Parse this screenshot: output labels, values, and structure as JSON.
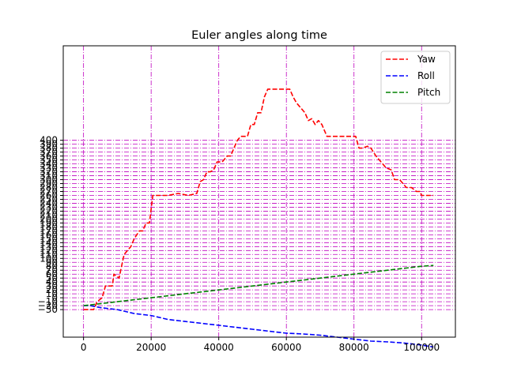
{
  "chart_data": {
    "type": "line",
    "title": "Euler angles along time",
    "xlabel": "",
    "ylabel": "",
    "xlim": [
      -6000,
      110000
    ],
    "ylim": [
      -100,
      640
    ],
    "x_ticks": [
      0,
      20000,
      40000,
      60000,
      80000,
      100000
    ],
    "x_tick_labels": [
      "0",
      "20000",
      "40000",
      "60000",
      "80000",
      "100000"
    ],
    "y_ticks": [
      -30,
      -20,
      -10,
      0,
      10,
      20,
      30,
      40,
      50,
      60,
      70,
      80,
      90,
      100,
      110,
      120,
      130,
      140,
      150,
      160,
      170,
      180,
      190,
      200,
      210,
      220,
      230,
      240,
      250,
      260,
      270,
      280,
      290,
      300,
      310,
      320,
      330,
      340,
      350,
      360,
      370,
      380,
      390,
      400
    ],
    "y_tick_labels": [
      "−30",
      "−20",
      "−10",
      "0",
      "10",
      "20",
      "30",
      "40",
      "50",
      "60",
      "70",
      "80",
      "90",
      "100",
      "110",
      "120",
      "130",
      "140",
      "150",
      "160",
      "170",
      "180",
      "190",
      "200",
      "210",
      "220",
      "230",
      "240",
      "250",
      "260",
      "270",
      "280",
      "290",
      "300",
      "310",
      "320",
      "330",
      "340",
      "350",
      "360",
      "370",
      "380",
      "390",
      "400"
    ],
    "grid": {
      "x": true,
      "y": true,
      "color": "#bf00bf",
      "style": "dash-dot"
    },
    "legend": {
      "position": "top-right"
    },
    "series": [
      {
        "name": "Yaw",
        "color": "#ff0000",
        "x": [
          0,
          3000,
          4000,
          5500,
          6500,
          8500,
          9000,
          10500,
          11500,
          12000,
          13000,
          14000,
          15000,
          16500,
          17500,
          18500,
          19500,
          20500,
          22000,
          25000,
          28000,
          31000,
          33500,
          34500,
          35500,
          36500,
          37500,
          38500,
          39500,
          41000,
          42500,
          43500,
          44500,
          45500,
          46500,
          48500,
          49500,
          50500,
          51500,
          52500,
          53500,
          54500,
          57000,
          59000,
          61000,
          62000,
          63000,
          64500,
          65500,
          66500,
          67500,
          68500,
          69500,
          70500,
          72000,
          75000,
          78000,
          80500,
          81500,
          82500,
          84000,
          85000,
          86500,
          87500,
          88500,
          89500,
          91000,
          92000,
          93500,
          94500,
          95500,
          96500,
          97000,
          98500,
          99500,
          100000,
          101500,
          103500
        ],
        "values": [
          -30,
          -30,
          -10,
          0,
          30,
          30,
          60,
          50,
          90,
          110,
          120,
          130,
          150,
          170,
          170,
          190,
          190,
          260,
          260,
          260,
          265,
          260,
          265,
          295,
          300,
          320,
          320,
          325,
          345,
          345,
          360,
          360,
          380,
          400,
          410,
          410,
          440,
          440,
          470,
          470,
          510,
          530,
          530,
          530,
          530,
          510,
          495,
          480,
          470,
          450,
          455,
          440,
          450,
          440,
          410,
          410,
          410,
          410,
          380,
          380,
          385,
          380,
          360,
          350,
          340,
          330,
          325,
          300,
          300,
          290,
          280,
          280,
          280,
          270,
          270,
          260,
          260,
          260
        ]
      },
      {
        "name": "Roll",
        "color": "#0000ff",
        "x": [
          0,
          2000,
          5000,
          10000,
          15000,
          20000,
          25000,
          30000,
          35000,
          40000,
          45000,
          50000,
          55000,
          60000,
          65000,
          70000,
          75000,
          80000,
          85000,
          90000,
          95000,
          100000,
          103500
        ],
        "values": [
          -20,
          -20,
          -25,
          -30,
          -40,
          -45,
          -55,
          -60,
          -65,
          -70,
          -75,
          -80,
          -85,
          -90,
          -92,
          -95,
          -100,
          -105,
          -110,
          -112,
          -115,
          -120,
          -125
        ]
      },
      {
        "name": "Pitch",
        "color": "#008000",
        "x": [
          0,
          5000,
          10000,
          15000,
          20000,
          25000,
          30000,
          35000,
          40000,
          45000,
          50000,
          55000,
          60000,
          65000,
          70000,
          75000,
          80000,
          85000,
          90000,
          95000,
          100000,
          103500
        ],
        "values": [
          -20,
          -15,
          -10,
          -5,
          0,
          5,
          10,
          15,
          20,
          25,
          30,
          35,
          40,
          45,
          50,
          55,
          60,
          65,
          70,
          75,
          80,
          82
        ]
      }
    ]
  }
}
